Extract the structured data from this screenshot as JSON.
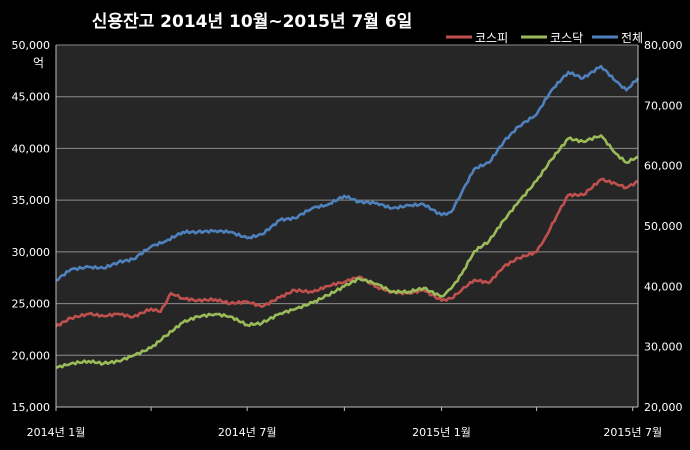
{
  "chart_data": {
    "type": "line",
    "title": "신용잔고 2014년 10월~2015년 7월 6일",
    "left_axis": {
      "unit_label": "억",
      "ylim": [
        15000,
        50000
      ],
      "ticks": [
        15000,
        20000,
        25000,
        30000,
        35000,
        40000,
        45000,
        50000
      ],
      "tick_labels": [
        "15,000",
        "20,000",
        "25,000",
        "30,000",
        "35,000",
        "40,000",
        "45,000",
        "50,000"
      ]
    },
    "right_axis": {
      "ylim": [
        20000,
        80000
      ],
      "ticks": [
        20000,
        30000,
        40000,
        50000,
        60000,
        70000,
        80000
      ],
      "tick_labels": [
        "20,000",
        "30,000",
        "40,000",
        "50,000",
        "60,000",
        "70,000",
        "80,000"
      ]
    },
    "x_axis": {
      "range": [
        "2014-01-01",
        "2015-07-06"
      ],
      "tick_labels": [
        {
          "date": "2014-01-01",
          "label": "2014년 1월"
        },
        {
          "date": "2014-07-01",
          "label": "2014년 7월"
        },
        {
          "date": "2015-01-01",
          "label": "2015년 1월"
        },
        {
          "date": "2015-07-01",
          "label": "2015년 7월"
        }
      ],
      "minor_ticks": [
        "2014-04-01",
        "2014-10-01",
        "2015-04-01"
      ]
    },
    "grid": "horizontal",
    "legend_position": "top-right",
    "series": [
      {
        "name": "코스피",
        "axis": "left",
        "color": "#c0504d",
        "points": [
          [
            "2014-01-01",
            22800
          ],
          [
            "2014-01-15",
            23600
          ],
          [
            "2014-02-01",
            24000
          ],
          [
            "2014-02-15",
            23800
          ],
          [
            "2014-03-01",
            24000
          ],
          [
            "2014-03-15",
            23700
          ],
          [
            "2014-04-01",
            24500
          ],
          [
            "2014-04-10",
            24200
          ],
          [
            "2014-04-20",
            26000
          ],
          [
            "2014-05-01",
            25500
          ],
          [
            "2014-05-15",
            25300
          ],
          [
            "2014-06-01",
            25400
          ],
          [
            "2014-06-15",
            25000
          ],
          [
            "2014-07-01",
            25200
          ],
          [
            "2014-07-15",
            24700
          ],
          [
            "2014-08-01",
            25600
          ],
          [
            "2014-08-15",
            26300
          ],
          [
            "2014-09-01",
            26100
          ],
          [
            "2014-09-15",
            26700
          ],
          [
            "2014-10-01",
            27100
          ],
          [
            "2014-10-15",
            27600
          ],
          [
            "2014-11-01",
            26600
          ],
          [
            "2014-11-15",
            26100
          ],
          [
            "2014-12-01",
            26000
          ],
          [
            "2014-12-15",
            26300
          ],
          [
            "2015-01-01",
            25300
          ],
          [
            "2015-01-10",
            25500
          ],
          [
            "2015-01-20",
            26300
          ],
          [
            "2015-02-01",
            27300
          ],
          [
            "2015-02-15",
            27000
          ],
          [
            "2015-03-01",
            28600
          ],
          [
            "2015-03-15",
            29400
          ],
          [
            "2015-04-01",
            30000
          ],
          [
            "2015-04-10",
            31500
          ],
          [
            "2015-04-20",
            33500
          ],
          [
            "2015-05-01",
            35500
          ],
          [
            "2015-05-15",
            35500
          ],
          [
            "2015-06-01",
            37000
          ],
          [
            "2015-06-15",
            36600
          ],
          [
            "2015-06-25",
            36200
          ],
          [
            "2015-07-06",
            36800
          ]
        ]
      },
      {
        "name": "코스닥",
        "axis": "right",
        "color": "#9bbb59",
        "points": [
          [
            "2014-01-01",
            26500
          ],
          [
            "2014-01-15",
            27200
          ],
          [
            "2014-02-01",
            27600
          ],
          [
            "2014-02-15",
            27200
          ],
          [
            "2014-03-01",
            27600
          ],
          [
            "2014-03-15",
            28500
          ],
          [
            "2014-04-01",
            29800
          ],
          [
            "2014-04-15",
            31800
          ],
          [
            "2014-05-01",
            34000
          ],
          [
            "2014-05-15",
            35000
          ],
          [
            "2014-06-01",
            35400
          ],
          [
            "2014-06-15",
            35000
          ],
          [
            "2014-07-01",
            33600
          ],
          [
            "2014-07-15",
            33900
          ],
          [
            "2014-08-01",
            35500
          ],
          [
            "2014-08-15",
            36200
          ],
          [
            "2014-09-01",
            37300
          ],
          [
            "2014-09-15",
            38500
          ],
          [
            "2014-10-01",
            40000
          ],
          [
            "2014-10-15",
            41300
          ],
          [
            "2014-11-01",
            40400
          ],
          [
            "2014-11-15",
            39100
          ],
          [
            "2014-12-01",
            39100
          ],
          [
            "2014-12-15",
            39700
          ],
          [
            "2015-01-01",
            38300
          ],
          [
            "2015-01-10",
            39600
          ],
          [
            "2015-01-20",
            42000
          ],
          [
            "2015-02-01",
            45800
          ],
          [
            "2015-02-15",
            47500
          ],
          [
            "2015-03-01",
            51000
          ],
          [
            "2015-03-15",
            54000
          ],
          [
            "2015-04-01",
            57500
          ],
          [
            "2015-04-15",
            61000
          ],
          [
            "2015-05-01",
            64500
          ],
          [
            "2015-05-15",
            64000
          ],
          [
            "2015-06-01",
            65000
          ],
          [
            "2015-06-15",
            62000
          ],
          [
            "2015-06-25",
            60500
          ],
          [
            "2015-07-06",
            61500
          ]
        ]
      },
      {
        "name": "전체",
        "axis": "right",
        "color": "#4f81bd",
        "points": [
          [
            "2014-01-01",
            41000
          ],
          [
            "2014-01-15",
            42800
          ],
          [
            "2014-02-01",
            43200
          ],
          [
            "2014-02-15",
            43000
          ],
          [
            "2014-03-01",
            44000
          ],
          [
            "2014-03-15",
            44500
          ],
          [
            "2014-04-01",
            46600
          ],
          [
            "2014-04-15",
            47500
          ],
          [
            "2014-05-01",
            49000
          ],
          [
            "2014-05-15",
            49000
          ],
          [
            "2014-06-01",
            49200
          ],
          [
            "2014-06-15",
            49000
          ],
          [
            "2014-07-01",
            48000
          ],
          [
            "2014-07-15",
            48600
          ],
          [
            "2014-08-01",
            51000
          ],
          [
            "2014-08-15",
            51300
          ],
          [
            "2014-09-01",
            53000
          ],
          [
            "2014-09-15",
            53500
          ],
          [
            "2014-10-01",
            55000
          ],
          [
            "2014-10-15",
            54000
          ],
          [
            "2014-11-01",
            53800
          ],
          [
            "2014-11-15",
            52900
          ],
          [
            "2014-12-01",
            53400
          ],
          [
            "2014-12-15",
            53600
          ],
          [
            "2015-01-01",
            51800
          ],
          [
            "2015-01-10",
            52300
          ],
          [
            "2015-01-20",
            55500
          ],
          [
            "2015-02-01",
            59500
          ],
          [
            "2015-02-15",
            60500
          ],
          [
            "2015-03-01",
            64000
          ],
          [
            "2015-03-15",
            66500
          ],
          [
            "2015-04-01",
            68500
          ],
          [
            "2015-04-15",
            72500
          ],
          [
            "2015-05-01",
            75500
          ],
          [
            "2015-05-15",
            74500
          ],
          [
            "2015-06-01",
            76500
          ],
          [
            "2015-06-15",
            74000
          ],
          [
            "2015-06-25",
            72500
          ],
          [
            "2015-07-06",
            74500
          ]
        ]
      }
    ]
  }
}
